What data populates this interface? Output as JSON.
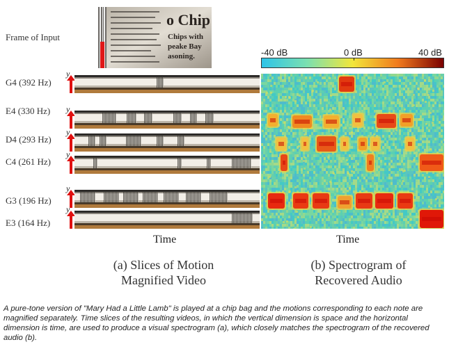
{
  "frame_label": "Frame of Input",
  "chip_bag_text": "o Chip",
  "chip_bag_subtext": [
    "Chips with",
    "peake Bay",
    "asoning."
  ],
  "y_axis_symbol": "y",
  "notes": [
    {
      "label": "G4 (392 Hz)"
    },
    {
      "label": "E4 (330 Hz)"
    },
    {
      "label": "D4 (293 Hz)"
    },
    {
      "label": "C4 (261 Hz)"
    },
    {
      "label": "G3 (196 Hz)"
    },
    {
      "label": "E3 (164 Hz)"
    }
  ],
  "colorbar": {
    "min_label": "-40 dB",
    "mid_label": "0 dB",
    "max_label": "40 dB",
    "colors": [
      "#2ec4e8",
      "#7be0b0",
      "#f2e63a",
      "#f07a1e",
      "#7a0000"
    ]
  },
  "left_time_label": "Time",
  "right_time_label": "Time",
  "subcaption_a": [
    "(a) Slices of Motion",
    "Magnified Video"
  ],
  "subcaption_b": [
    "(b) Spectrogram of",
    "Recovered Audio"
  ],
  "caption": "A pure-tone version of \"Mary Had a Little Lamb\" is played at a chip bag and the motions corresponding to each note are magnified separately. Time slices of the resulting videos, in which the vertical dimension is space and the horizontal dimension is time, are used to produce a visual spectrogram (a), which closely matches the spectrogram of the recovered audio (b)."
}
